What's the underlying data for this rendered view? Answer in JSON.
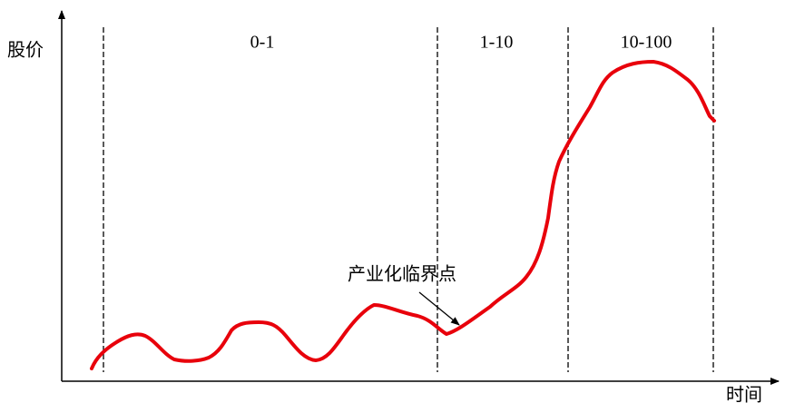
{
  "axes": {
    "y_label": "股价",
    "x_label": "时间"
  },
  "phases": [
    "0-1",
    "1-10",
    "10-100"
  ],
  "annotation": "产业化临界点"
}
